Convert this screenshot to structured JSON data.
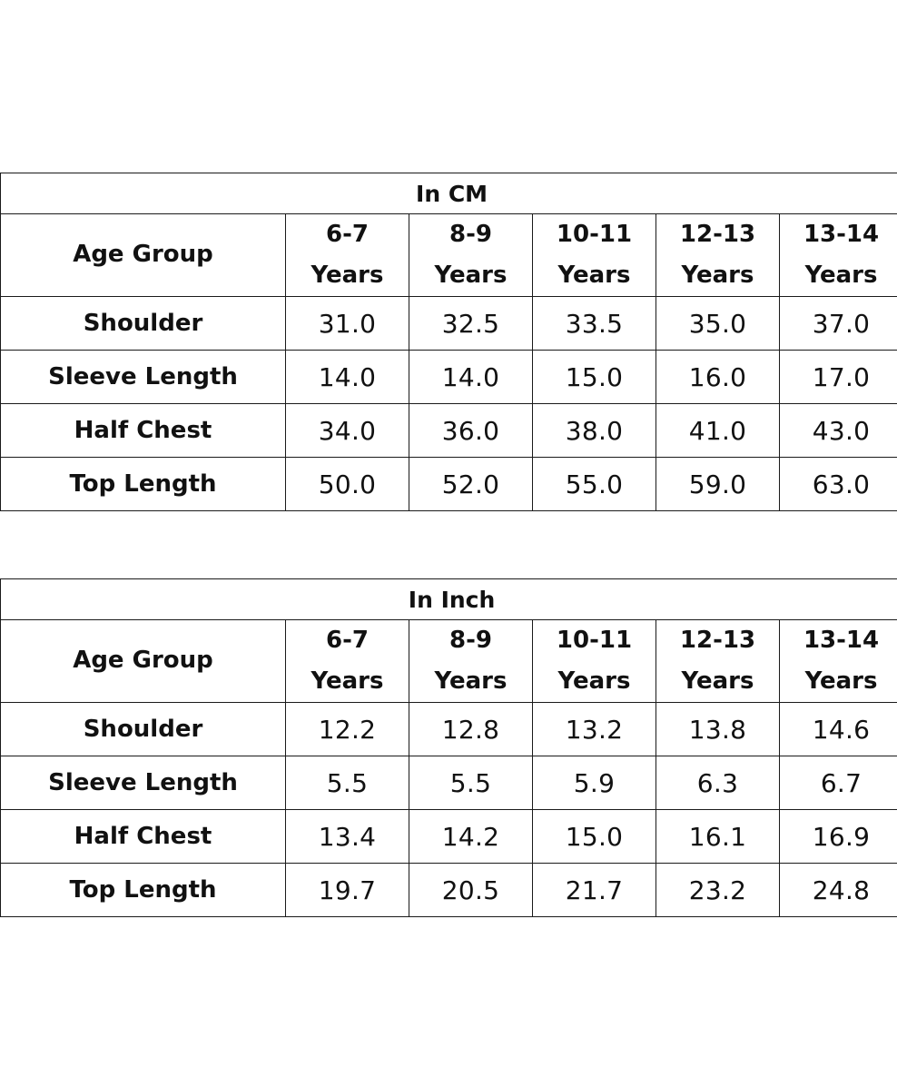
{
  "tables": [
    {
      "title": "In CM",
      "header": {
        "label": "Age Group",
        "columns": [
          {
            "range": "6-7",
            "unit": "Years"
          },
          {
            "range": "8-9",
            "unit": "Years"
          },
          {
            "range": "10-11",
            "unit": "Years"
          },
          {
            "range": "12-13",
            "unit": "Years"
          },
          {
            "range": "13-14",
            "unit": "Years"
          }
        ]
      },
      "rows": [
        {
          "label": "Shoulder",
          "values": [
            "31.0",
            "32.5",
            "33.5",
            "35.0",
            "37.0"
          ]
        },
        {
          "label": "Sleeve Length",
          "values": [
            "14.0",
            "14.0",
            "15.0",
            "16.0",
            "17.0"
          ]
        },
        {
          "label": "Half Chest",
          "values": [
            "34.0",
            "36.0",
            "38.0",
            "41.0",
            "43.0"
          ]
        },
        {
          "label": "Top Length",
          "values": [
            "50.0",
            "52.0",
            "55.0",
            "59.0",
            "63.0"
          ]
        }
      ]
    },
    {
      "title": "In Inch",
      "header": {
        "label": "Age Group",
        "columns": [
          {
            "range": "6-7",
            "unit": "Years"
          },
          {
            "range": "8-9",
            "unit": "Years"
          },
          {
            "range": "10-11",
            "unit": "Years"
          },
          {
            "range": "12-13",
            "unit": "Years"
          },
          {
            "range": "13-14",
            "unit": "Years"
          }
        ]
      },
      "rows": [
        {
          "label": "Shoulder",
          "values": [
            "12.2",
            "12.8",
            "13.2",
            "13.8",
            "14.6"
          ]
        },
        {
          "label": "Sleeve Length",
          "values": [
            "5.5",
            "5.5",
            "5.9",
            "6.3",
            "6.7"
          ]
        },
        {
          "label": "Half Chest",
          "values": [
            "13.4",
            "14.2",
            "15.0",
            "16.1",
            "16.9"
          ]
        },
        {
          "label": "Top Length",
          "values": [
            "19.7",
            "20.5",
            "21.7",
            "23.2",
            "24.8"
          ]
        }
      ]
    }
  ]
}
